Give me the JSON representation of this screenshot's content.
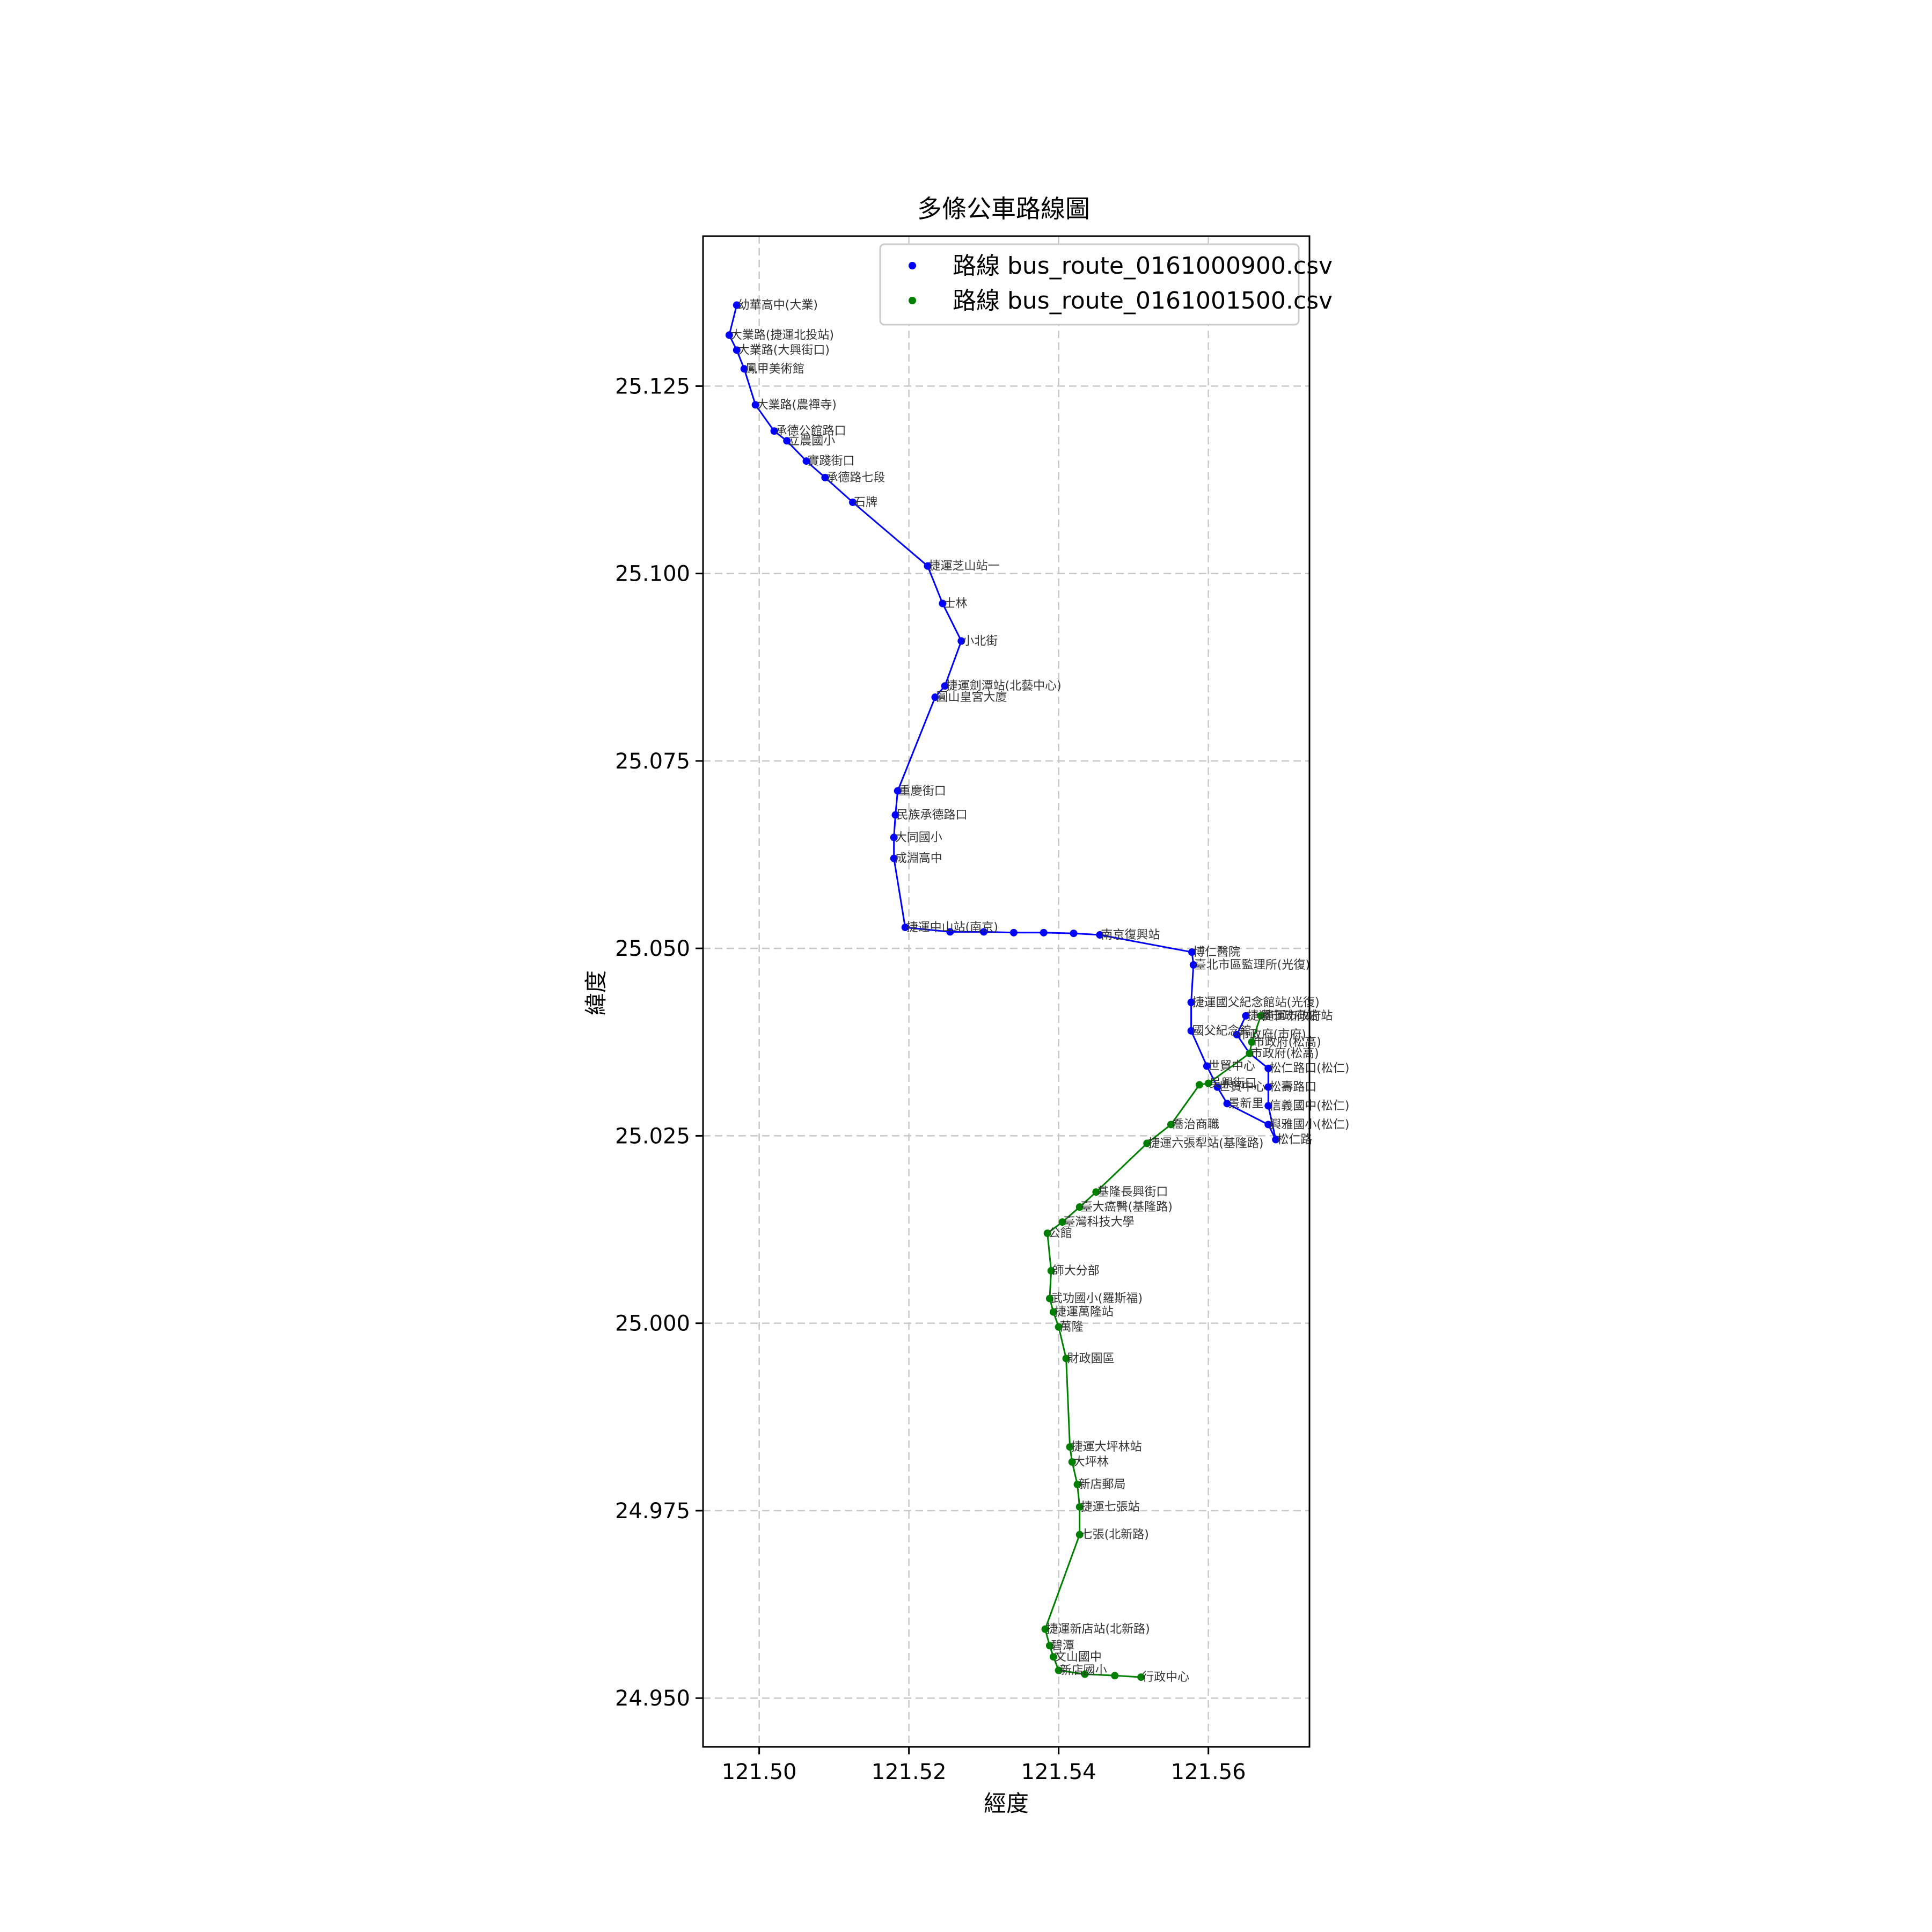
{
  "chart_data": {
    "type": "line",
    "title": "多條公車路線圖",
    "xlabel": "經度",
    "ylabel": "緯度",
    "xlim": [
      121.4925,
      121.5735
    ],
    "ylim": [
      24.9435,
      25.145
    ],
    "xticks": [
      121.5,
      121.52,
      121.54,
      121.56
    ],
    "xtick_labels": [
      "121.50",
      "121.52",
      "121.54",
      "121.56"
    ],
    "yticks": [
      24.95,
      24.975,
      25.0,
      25.025,
      25.05,
      25.075,
      25.1,
      25.125
    ],
    "ytick_labels": [
      "24.950",
      "24.975",
      "25.000",
      "25.025",
      "25.050",
      "25.075",
      "25.100",
      "25.125"
    ],
    "grid": true,
    "legend_position": "top-right",
    "series": [
      {
        "name": "路線 bus_route_0161000900.csv",
        "color": "#0000ff",
        "points": [
          {
            "x": 121.497,
            "y": 25.1358,
            "label": "幼華高中(大業)"
          },
          {
            "x": 121.496,
            "y": 25.1318,
            "label": "大業路(捷運北投站)"
          },
          {
            "x": 121.497,
            "y": 25.1298,
            "label": "大業路(大興街口)"
          },
          {
            "x": 121.498,
            "y": 25.1273,
            "label": "鳳甲美術館"
          },
          {
            "x": 121.4995,
            "y": 25.1225,
            "label": "大業路(農禪寺)"
          },
          {
            "x": 121.502,
            "y": 25.119,
            "label": "承德公館路口"
          },
          {
            "x": 121.5037,
            "y": 25.1177,
            "label": "立農國小"
          },
          {
            "x": 121.5063,
            "y": 25.115,
            "label": "實踐街口"
          },
          {
            "x": 121.5088,
            "y": 25.1128,
            "label": "承德路七段"
          },
          {
            "x": 121.5125,
            "y": 25.1095,
            "label": "石牌"
          },
          {
            "x": 121.5225,
            "y": 25.101,
            "label": "捷運芝山站一"
          },
          {
            "x": 121.5245,
            "y": 25.096,
            "label": "士林"
          },
          {
            "x": 121.527,
            "y": 25.091,
            "label": "小北街"
          },
          {
            "x": 121.5248,
            "y": 25.085,
            "label": "捷運劍潭站(北藝中心)"
          },
          {
            "x": 121.5235,
            "y": 25.0835,
            "label": "圓山皇宮大廈"
          },
          {
            "x": 121.5185,
            "y": 25.071,
            "label": "重慶街口"
          },
          {
            "x": 121.5182,
            "y": 25.0678,
            "label": "民族承德路口"
          },
          {
            "x": 121.518,
            "y": 25.0648,
            "label": "大同國小"
          },
          {
            "x": 121.518,
            "y": 25.062,
            "label": "成淵高中"
          },
          {
            "x": 121.5195,
            "y": 25.0528,
            "label": "捷運中山站(南京)"
          },
          {
            "x": 121.5255,
            "y": 25.0522,
            "label": ""
          },
          {
            "x": 121.53,
            "y": 25.0522,
            "label": ""
          },
          {
            "x": 121.534,
            "y": 25.0521,
            "label": ""
          },
          {
            "x": 121.538,
            "y": 25.0521,
            "label": ""
          },
          {
            "x": 121.542,
            "y": 25.052,
            "label": ""
          },
          {
            "x": 121.5455,
            "y": 25.0518,
            "label": "南京復興站"
          },
          {
            "x": 121.5578,
            "y": 25.0495,
            "label": "博仁醫院"
          },
          {
            "x": 121.558,
            "y": 25.0478,
            "label": "臺北市區監理所(光復)"
          },
          {
            "x": 121.5577,
            "y": 25.0428,
            "label": "捷運國父紀念館站(光復)"
          },
          {
            "x": 121.5577,
            "y": 25.039,
            "label": "國父紀念館"
          },
          {
            "x": 121.5598,
            "y": 25.0343,
            "label": "世貿中心"
          },
          {
            "x": 121.5612,
            "y": 25.0315,
            "label": "世貿中心"
          },
          {
            "x": 121.5625,
            "y": 25.0293,
            "label": "景新里"
          },
          {
            "x": 121.568,
            "y": 25.0265,
            "label": "興雅國小(松仁)"
          },
          {
            "x": 121.569,
            "y": 25.0245,
            "label": "松仁路"
          },
          {
            "x": 121.568,
            "y": 25.029,
            "label": "信義國中(松仁)"
          },
          {
            "x": 121.568,
            "y": 25.0315,
            "label": "松壽路口"
          },
          {
            "x": 121.568,
            "y": 25.034,
            "label": "松仁路口(松仁)"
          },
          {
            "x": 121.5655,
            "y": 25.036,
            "label": "市政府(松高)"
          },
          {
            "x": 121.5638,
            "y": 25.0385,
            "label": "市政府(市府)"
          },
          {
            "x": 121.565,
            "y": 25.041,
            "label": "捷運市政府站"
          }
        ]
      },
      {
        "name": "路線 bus_route_0161001500.csv",
        "color": "#008000",
        "points": [
          {
            "x": 121.567,
            "y": 25.041,
            "label": "捷運市政府站"
          },
          {
            "x": 121.5658,
            "y": 25.0375,
            "label": "市政府(松高)"
          },
          {
            "x": 121.5655,
            "y": 25.036,
            "label": ""
          },
          {
            "x": 121.56,
            "y": 25.032,
            "label": "吳興街口"
          },
          {
            "x": 121.5588,
            "y": 25.0318,
            "label": ""
          },
          {
            "x": 121.555,
            "y": 25.0265,
            "label": "喬治商職"
          },
          {
            "x": 121.5518,
            "y": 25.024,
            "label": "捷運六張犁站(基隆路)"
          },
          {
            "x": 121.545,
            "y": 25.0175,
            "label": "基隆長興街口"
          },
          {
            "x": 121.5428,
            "y": 25.0155,
            "label": "臺大癌醫(基隆路)"
          },
          {
            "x": 121.5405,
            "y": 25.0135,
            "label": "臺灣科技大學"
          },
          {
            "x": 121.5385,
            "y": 25.012,
            "label": "公館"
          },
          {
            "x": 121.539,
            "y": 25.007,
            "label": "師大分部"
          },
          {
            "x": 121.5388,
            "y": 25.0033,
            "label": "武功國小(羅斯福)"
          },
          {
            "x": 121.5393,
            "y": 25.0015,
            "label": "捷運萬隆站"
          },
          {
            "x": 121.54,
            "y": 24.9995,
            "label": "萬隆"
          },
          {
            "x": 121.541,
            "y": 24.9953,
            "label": "財政園區"
          },
          {
            "x": 121.5415,
            "y": 24.9835,
            "label": "捷運大坪林站"
          },
          {
            "x": 121.5418,
            "y": 24.9815,
            "label": "大坪林"
          },
          {
            "x": 121.5425,
            "y": 24.9785,
            "label": "新店郵局"
          },
          {
            "x": 121.5428,
            "y": 24.9755,
            "label": "捷運七張站"
          },
          {
            "x": 121.5428,
            "y": 24.9718,
            "label": "七張(北新路)"
          },
          {
            "x": 121.5382,
            "y": 24.9592,
            "label": "捷運新店站(北新路)"
          },
          {
            "x": 121.5388,
            "y": 24.957,
            "label": "碧潭"
          },
          {
            "x": 121.5393,
            "y": 24.9555,
            "label": "文山國中"
          },
          {
            "x": 121.54,
            "y": 24.9537,
            "label": "新店國小"
          },
          {
            "x": 121.5435,
            "y": 24.9532,
            "label": ""
          },
          {
            "x": 121.5475,
            "y": 24.953,
            "label": ""
          },
          {
            "x": 121.551,
            "y": 24.9528,
            "label": "行政中心"
          }
        ]
      }
    ]
  }
}
